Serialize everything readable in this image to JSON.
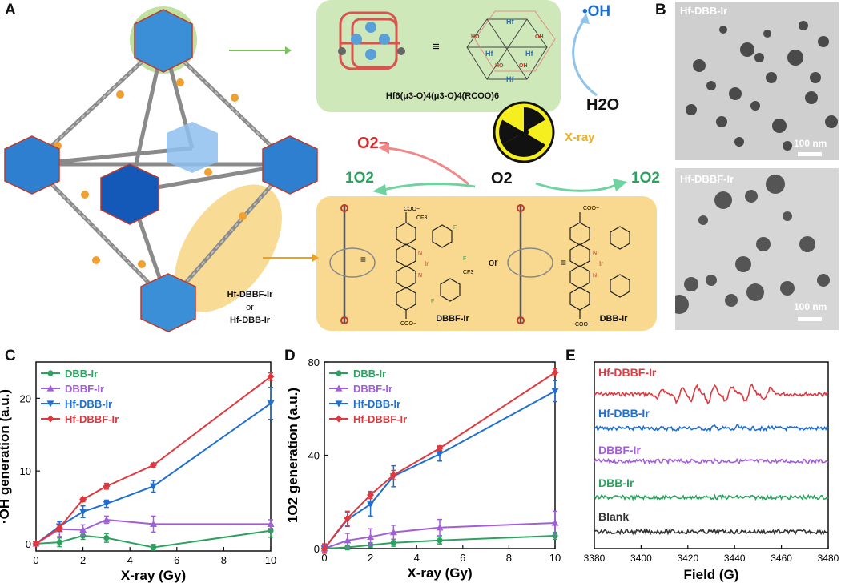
{
  "panels": {
    "a": "A",
    "b": "B",
    "c": "C",
    "d": "D",
    "e": "E"
  },
  "panel_a": {
    "cluster_formula": "Hf6(μ3-O)4(μ3-O)4(RCOO)6",
    "equiv": "≡",
    "ligand_name_1": "Hf-DBBF-Ir",
    "or_text": "or",
    "ligand_name_2": "Hf-DBB-Ir",
    "oh_radical": "•OH",
    "water": "H2O",
    "xray": "X-ray",
    "superoxide": "O2−",
    "singlet_left": "1O2",
    "oxygen": "O2",
    "singlet_right": "1O2",
    "dbbf_label": "DBBF-Ir",
    "dbb_label": "DBB-Ir",
    "or_mid": "or",
    "hf_atom": "Hf",
    "ho_atom": "HO",
    "oh_atom": "OH",
    "cf3_atom": "CF3",
    "f_atom": "F",
    "n_atom": "N",
    "ir_atom": "Ir",
    "coo_minus": "COO−"
  },
  "panel_b": {
    "top_label": "Hf-DBB-Ir",
    "bottom_label": "Hf-DBBF-Ir",
    "scale_top": "100 nm",
    "scale_bottom": "100 nm"
  },
  "colors": {
    "dbb": "#2ca25f",
    "dbbf": "#a25ed8",
    "hfdbb": "#1f6fd1",
    "hfdbbf": "#e0383e",
    "blank": "#333333"
  },
  "chart_data": [
    {
      "type": "line",
      "panel": "C",
      "xlabel": "X-ray (Gy)",
      "ylabel": "·OH generation (a.u.)",
      "xlim": [
        0,
        10
      ],
      "ylim": [
        -1,
        25
      ],
      "xticks": [
        0,
        2,
        4,
        6,
        8,
        10
      ],
      "yticks": [
        0,
        10,
        20
      ],
      "x": [
        0,
        1,
        2,
        3,
        5,
        10
      ],
      "series": [
        {
          "name": "DBB-Ir",
          "color": "#2ca25f",
          "marker": "circle",
          "values": [
            0,
            0.2,
            1.1,
            0.8,
            -0.5,
            1.8
          ],
          "err": [
            0.3,
            0.6,
            0.5,
            0.6,
            0.4,
            0.9
          ]
        },
        {
          "name": "DBBF-Ir",
          "color": "#a25ed8",
          "marker": "triangle-up",
          "values": [
            0,
            2.0,
            1.9,
            3.3,
            2.7,
            2.7
          ],
          "err": [
            0.3,
            1.0,
            0.7,
            0.5,
            1.1,
            0.6
          ]
        },
        {
          "name": "Hf-DBB-Ir",
          "color": "#1f6fd1",
          "marker": "triangle-down",
          "values": [
            0,
            2.4,
            4.4,
            5.5,
            7.9,
            19.3
          ],
          "err": [
            0.3,
            0.7,
            0.8,
            0.5,
            0.8,
            2.2
          ]
        },
        {
          "name": "Hf-DBBF-Ir",
          "color": "#e0383e",
          "marker": "diamond",
          "values": [
            0,
            2.2,
            6.1,
            7.9,
            10.8,
            23.0
          ],
          "err": [
            0.3,
            0.4,
            0.3,
            0.4,
            0.3,
            0.5
          ]
        }
      ],
      "legend": "top-left",
      "grid": false
    },
    {
      "type": "line",
      "panel": "D",
      "xlabel": "X-ray (Gy)",
      "ylabel": "1O2 generation (a.u.)",
      "xlim": [
        0,
        10
      ],
      "ylim": [
        0,
        80
      ],
      "xticks": [
        0,
        2,
        4,
        6,
        8,
        10
      ],
      "yticks": [
        0,
        40,
        80
      ],
      "x": [
        0,
        1,
        2,
        3,
        5,
        10
      ],
      "series": [
        {
          "name": "DBB-Ir",
          "color": "#2ca25f",
          "marker": "circle",
          "values": [
            0,
            0.5,
            1.5,
            2.5,
            3.5,
            5.5
          ],
          "err": [
            1,
            1,
            1,
            1.5,
            1.5,
            1.5
          ]
        },
        {
          "name": "DBBF-Ir",
          "color": "#a25ed8",
          "marker": "triangle-up",
          "values": [
            0,
            3.5,
            5,
            7,
            9,
            11
          ],
          "err": [
            1.5,
            3,
            3.5,
            3,
            3.5,
            5
          ]
        },
        {
          "name": "Hf-DBB-Ir",
          "color": "#1f6fd1",
          "marker": "triangle-down",
          "values": [
            0,
            12.5,
            19,
            31,
            40.5,
            67.5
          ],
          "err": [
            2,
            3,
            5,
            4.5,
            3,
            4.5
          ]
        },
        {
          "name": "Hf-DBBF-Ir",
          "color": "#e0383e",
          "marker": "diamond",
          "values": [
            0,
            13,
            23,
            31.5,
            43,
            75.5
          ],
          "err": [
            2,
            3,
            1.5,
            2,
            1,
            1.5
          ]
        }
      ],
      "legend": "top-left",
      "grid": false
    },
    {
      "type": "line",
      "panel": "E",
      "xlabel": "Field (G)",
      "ylabel": "",
      "xlim": [
        3380,
        3480
      ],
      "xticks": [
        3380,
        3400,
        3420,
        3440,
        3460,
        3480
      ],
      "series": [
        {
          "name": "Hf-DBBF-Ir",
          "color": "#e0383e"
        },
        {
          "name": "Hf-DBB-Ir",
          "color": "#1f6fd1"
        },
        {
          "name": "DBBF-Ir",
          "color": "#a25ed8"
        },
        {
          "name": "DBB-Ir",
          "color": "#2ca25f"
        },
        {
          "name": "Blank",
          "color": "#333333"
        }
      ],
      "legend": "inline-left"
    }
  ]
}
